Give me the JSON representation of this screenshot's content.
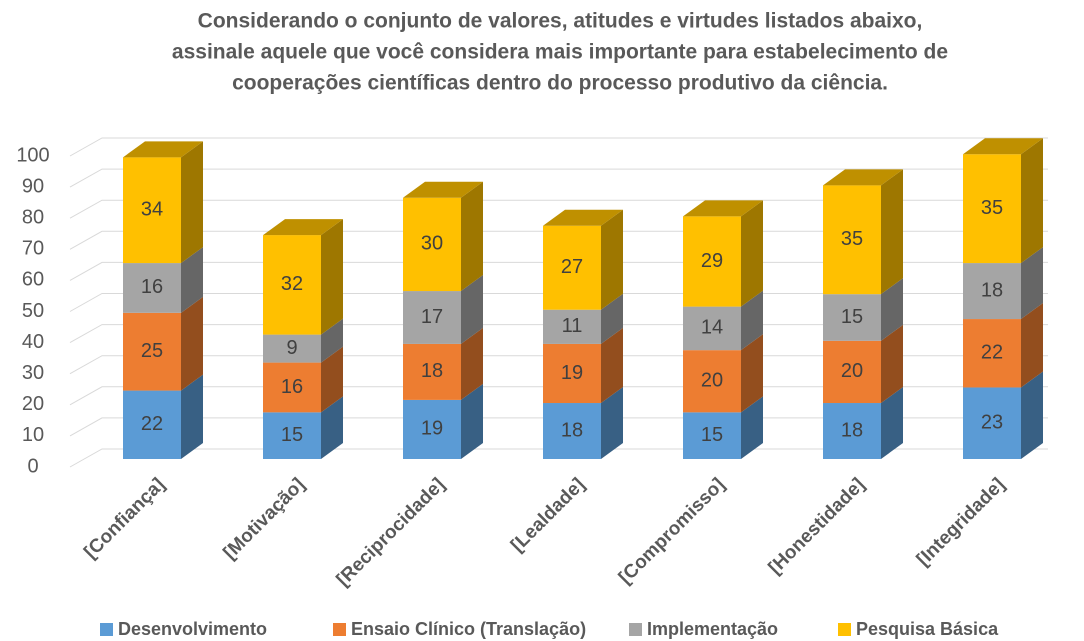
{
  "chart_data": {
    "type": "bar3d_stacked",
    "title": [
      "Considerando o conjunto de valores, atitudes e virtudes listados abaixo,",
      "assinale aquele que você considera mais importante para estabelecimento de",
      "cooperações científicas dentro do processo produtivo da ciência."
    ],
    "categories": [
      "[Confiança]",
      "[Motivação]",
      "[Reciprocidade]",
      "[Lealdade]",
      "[Compromisso]",
      "[Honestidade]",
      "[Integridade]"
    ],
    "series": [
      {
        "name": "Desenvolvimento",
        "color": "#5b9bd5",
        "values": [
          22,
          15,
          19,
          18,
          15,
          18,
          23
        ]
      },
      {
        "name": "Ensaio Clínico (Translação)",
        "color": "#ed7d31",
        "values": [
          25,
          16,
          18,
          19,
          20,
          20,
          22
        ]
      },
      {
        "name": "Implementação",
        "color": "#a5a5a5",
        "values": [
          16,
          9,
          17,
          11,
          14,
          15,
          18
        ]
      },
      {
        "name": "Pesquisa Básica",
        "color": "#ffc000",
        "values": [
          34,
          32,
          30,
          27,
          29,
          35,
          35
        ]
      }
    ],
    "ylim": [
      0,
      100
    ],
    "yticks": [
      0,
      10,
      20,
      30,
      40,
      50,
      60,
      70,
      80,
      90,
      100
    ],
    "grid": true,
    "legend": "bottom"
  }
}
